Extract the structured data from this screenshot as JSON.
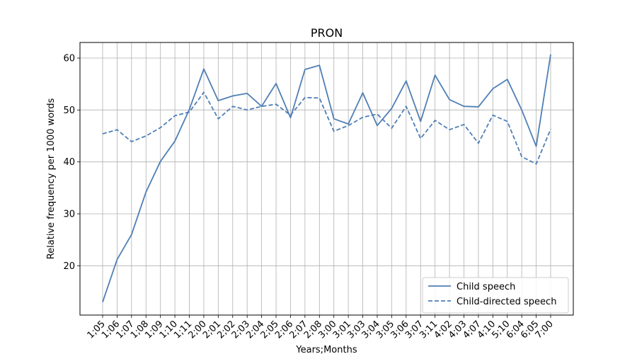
{
  "chart_data": {
    "type": "line",
    "title": "PRON",
    "xlabel": "Years;Months",
    "ylabel": "Relative frequency per 1000 words",
    "categories": [
      "1;05",
      "1;06",
      "1;07",
      "1;08",
      "1;09",
      "1;10",
      "1;11",
      "2;00",
      "2;01",
      "2;02",
      "2;03",
      "2;04",
      "2;05",
      "2;06",
      "2;07",
      "2;08",
      "3;00",
      "3;01",
      "3;03",
      "3;04",
      "3;05",
      "3;06",
      "3;07",
      "3;11",
      "4;02",
      "4;03",
      "4;07",
      "4;10",
      "5;10",
      "6;04",
      "6;05",
      "7;00"
    ],
    "yticks": [
      20,
      30,
      40,
      50,
      60
    ],
    "ylim": [
      10.5,
      63
    ],
    "grid": true,
    "legend_position": "bottom-right",
    "color": "#4f7fb5",
    "series": [
      {
        "name": "Child speech",
        "style": "solid",
        "values": [
          13.0,
          21.2,
          26.0,
          34.2,
          40.1,
          44.0,
          50.1,
          57.9,
          51.8,
          52.7,
          53.2,
          50.7,
          55.1,
          48.5,
          57.8,
          58.6,
          48.3,
          47.3,
          53.3,
          47.0,
          50.3,
          55.6,
          47.8,
          56.7,
          52.0,
          50.7,
          50.6,
          54.1,
          55.9,
          50.0,
          43.0,
          60.7
        ]
      },
      {
        "name": "Child-directed speech",
        "style": "dashed",
        "values": [
          45.4,
          46.2,
          43.9,
          45.0,
          46.6,
          48.9,
          49.6,
          53.4,
          48.3,
          50.7,
          50.0,
          50.7,
          51.1,
          49.0,
          52.4,
          52.3,
          45.9,
          47.0,
          48.6,
          49.2,
          46.5,
          50.7,
          44.5,
          48.0,
          46.2,
          47.2,
          43.6,
          49.0,
          47.8,
          41.0,
          39.6,
          46.3
        ]
      }
    ]
  }
}
